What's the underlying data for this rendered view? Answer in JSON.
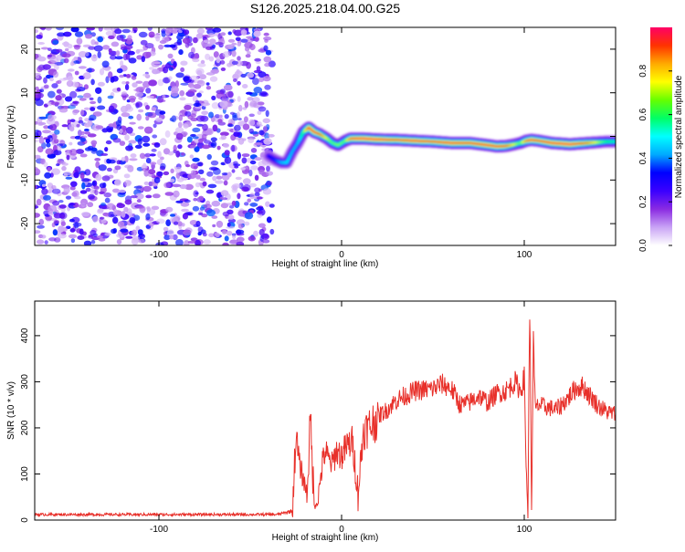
{
  "title": "S126.2025.218.04.00.G25",
  "chart_data": [
    {
      "type": "heatmap",
      "title": "S126.2025.218.04.00.G25",
      "xlabel": "Height of straight line (km)",
      "ylabel": "Frequency (Hz)",
      "xlim": [
        -168,
        150
      ],
      "ylim": [
        -25,
        25
      ],
      "x_ticks": [
        -100,
        0,
        100
      ],
      "x_tick_labels": [
        "-100",
        "0",
        "100"
      ],
      "y_ticks": [
        -20,
        -10,
        0,
        10,
        20
      ],
      "y_tick_labels": [
        "-20",
        "-10",
        "0",
        "10",
        "20"
      ],
      "colorbar": {
        "label": "Normalized spectral amplitude",
        "range": [
          0,
          1
        ],
        "ticks": [
          0.0,
          0.2,
          0.4,
          0.6,
          0.8
        ],
        "tick_labels": [
          "0.0",
          "0.2",
          "0.4",
          "0.6",
          "0.8"
        ],
        "colors": [
          "#ffffff",
          "#c9a3f5",
          "#8a2be2",
          "#3a00ff",
          "#0000ff",
          "#00aaff",
          "#00ffff",
          "#00ff66",
          "#66ff00",
          "#ffff00",
          "#ffaa00",
          "#ff3300",
          "#ff0066"
        ]
      },
      "noise_region": {
        "x_from": -168,
        "x_to": -38,
        "amplitude_range": [
          0.0,
          0.2
        ]
      },
      "ridge": {
        "x": [
          -40,
          -36,
          -33,
          -30,
          -27,
          -24,
          -21,
          -18,
          -15,
          -12,
          -8,
          -5,
          -2,
          2,
          5,
          8,
          12,
          20,
          30,
          40,
          50,
          60,
          70,
          80,
          85,
          90,
          95,
          98,
          101,
          104,
          108,
          115,
          125,
          135,
          145,
          150
        ],
        "freq": [
          -4.5,
          -5.5,
          -6.0,
          -6.0,
          -3.5,
          -1.5,
          1.0,
          2.0,
          1.0,
          0.5,
          -0.5,
          -1.5,
          -2.0,
          -1.0,
          -0.5,
          -0.5,
          -0.5,
          -0.7,
          -0.8,
          -1.0,
          -1.2,
          -1.5,
          -1.5,
          -2.0,
          -2.3,
          -2.2,
          -1.8,
          -1.5,
          -1.0,
          -0.8,
          -1.0,
          -1.5,
          -1.8,
          -1.5,
          -1.2,
          -1.2
        ],
        "amplitude": [
          0.25,
          0.3,
          0.4,
          0.45,
          0.4,
          0.4,
          0.55,
          0.95,
          0.95,
          0.9,
          0.7,
          0.6,
          0.65,
          0.6,
          0.9,
          0.95,
          0.97,
          0.97,
          0.9,
          0.95,
          0.9,
          0.95,
          0.92,
          0.95,
          0.92,
          0.9,
          0.7,
          0.6,
          0.85,
          0.95,
          0.9,
          0.95,
          0.97,
          0.85,
          0.55,
          0.5
        ]
      }
    },
    {
      "type": "line",
      "xlabel": "Height of straight line (km)",
      "ylabel": "SNR (10 * v/v)",
      "xlim": [
        -168,
        150
      ],
      "ylim": [
        0,
        475
      ],
      "x_ticks": [
        -100,
        0,
        100
      ],
      "x_tick_labels": [
        "-100",
        "0",
        "100"
      ],
      "y_ticks": [
        0,
        100,
        200,
        300,
        400
      ],
      "y_tick_labels": [
        "0",
        "100",
        "200",
        "300",
        "400"
      ],
      "color": "#e8302a",
      "series": [
        {
          "x": [
            -168,
            -150,
            -130,
            -110,
            -90,
            -70,
            -50,
            -35,
            -27,
            -25,
            -23,
            -21,
            -19,
            -17,
            -15,
            -13,
            -11,
            -9,
            -7,
            -5,
            -3,
            0,
            3,
            6,
            9,
            12,
            15,
            20,
            25,
            30,
            40,
            50,
            55,
            60,
            65,
            70,
            75,
            80,
            85,
            90,
            95,
            98,
            100,
            101,
            102,
            103,
            104,
            105,
            106,
            108,
            112,
            118,
            124,
            128,
            132,
            136,
            140,
            145,
            150
          ],
          "y": [
            12,
            12,
            12,
            12,
            12,
            12,
            12,
            12,
            20,
            180,
            120,
            90,
            60,
            220,
            30,
            40,
            110,
            150,
            130,
            120,
            150,
            140,
            160,
            170,
            60,
            195,
            200,
            225,
            240,
            260,
            280,
            285,
            295,
            285,
            250,
            255,
            270,
            255,
            275,
            280,
            300,
            280,
            310,
            120,
            20,
            470,
            30,
            390,
            240,
            250,
            245,
            240,
            265,
            285,
            290,
            270,
            250,
            235,
            230
          ]
        }
      ]
    }
  ]
}
